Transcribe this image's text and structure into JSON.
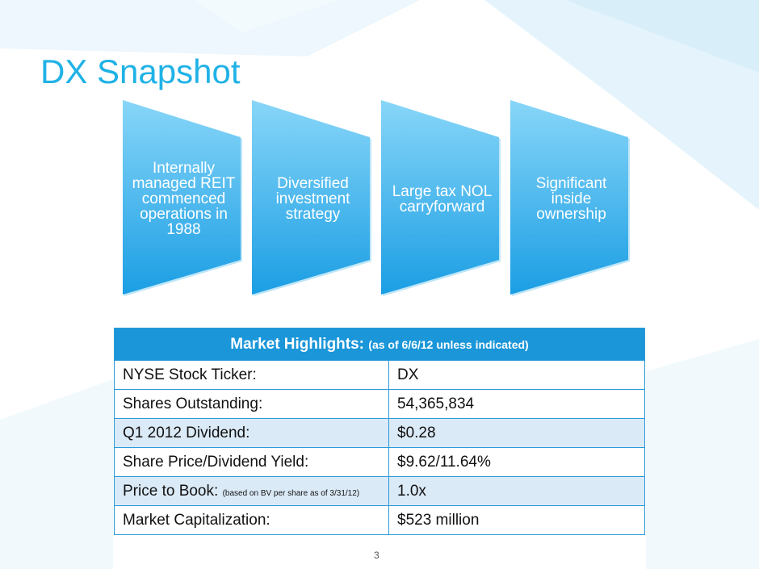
{
  "slide": {
    "title": "DX Snapshot",
    "page_number": "3"
  },
  "chevrons": [
    {
      "label": "Internally managed REIT commenced operations in 1988"
    },
    {
      "label": "Diversified investment strategy"
    },
    {
      "label": "Large tax NOL carryforward"
    },
    {
      "label": "Significant inside ownership"
    }
  ],
  "market_highlights": {
    "header_main": "Market Highlights:",
    "header_note": "(as of 6/6/12 unless indicated)",
    "rows": [
      {
        "label": "NYSE Stock Ticker:",
        "note": "",
        "value": "DX"
      },
      {
        "label": "Shares Outstanding:",
        "note": "",
        "value": "54,365,834"
      },
      {
        "label": "Q1 2012 Dividend:",
        "note": "",
        "value": "$0.28"
      },
      {
        "label": "Share Price/Dividend Yield:",
        "note": "",
        "value": "$9.62/11.64%"
      },
      {
        "label": "Price to Book:",
        "note": "(based on BV per share as of 3/31/12)",
        "value": "1.0x"
      },
      {
        "label": "Market Capitalization:",
        "note": "",
        "value": "$523 million"
      }
    ]
  },
  "colors": {
    "accent": "#1fb2e6",
    "chevron_top": "#7fd3f8",
    "chevron_bottom": "#1c9fe4",
    "table_header": "#1a96d9",
    "table_alt_row": "#dbeaf7"
  }
}
